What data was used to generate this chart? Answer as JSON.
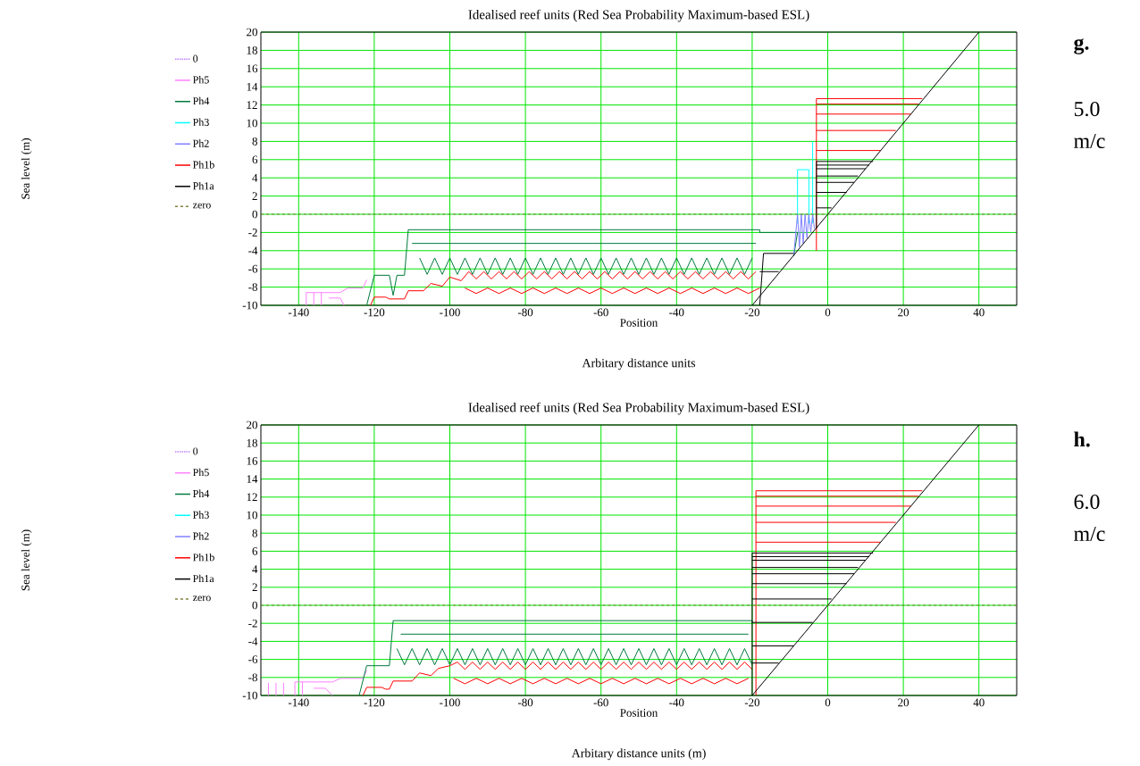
{
  "chart_data": [
    {
      "type": "line",
      "title": "Idealised reef units (Red Sea Probability Maximum-based ESL)",
      "xlabel": "Position",
      "ylabel": "Sea level (m)",
      "annotations": [
        "Arbitary distance units",
        "g.",
        "5.0 m/c"
      ],
      "xlim": [
        -150,
        50
      ],
      "ylim": [
        -10,
        20
      ],
      "xticks": [
        -140,
        -120,
        -100,
        -80,
        -60,
        -40,
        -20,
        0,
        20,
        40
      ],
      "yticks": [
        -10,
        -8,
        -6,
        -4,
        -2,
        0,
        2,
        4,
        6,
        8,
        10,
        12,
        14,
        16,
        18,
        20
      ],
      "grid": true,
      "legend": "left",
      "series": [
        {
          "name": "0",
          "color": "#c080ff",
          "line_style": "dotted"
        },
        {
          "name": "Ph5",
          "color": "#ff80ff",
          "line_style": "solid",
          "x": [
            -138,
            -138,
            -129,
            -127,
            -123,
            -122,
            null,
            -136,
            -136,
            null,
            -134,
            -134,
            null,
            -132,
            -129,
            -128
          ],
          "values": [
            -10,
            -8.6,
            -8.6,
            -8.1,
            -8.1,
            -7.2,
            null,
            -10,
            -8.6,
            null,
            -10,
            -8.6,
            null,
            -9.2,
            -9.2,
            -10
          ]
        },
        {
          "name": "Ph4",
          "color": "#007a3d",
          "line_style": "solid",
          "x": [
            -122,
            -120,
            -116,
            -115,
            -114,
            -112,
            -111,
            -18,
            -18,
            -8,
            -9,
            null,
            -110,
            -19,
            null,
            -108,
            -106,
            -104,
            -102,
            -100,
            -98,
            -96,
            -94,
            -92,
            -90,
            -88,
            -86,
            -84,
            -82,
            -80,
            -78,
            -76,
            -74,
            -72,
            -70,
            -68,
            -66,
            -64,
            -62,
            -60,
            -58,
            -56,
            -54,
            -52,
            -50,
            -48,
            -46,
            -44,
            -42,
            -40,
            -38,
            -36,
            -34,
            -32,
            -30,
            -28,
            -26,
            -24,
            -22,
            -20
          ],
          "values": [
            -10,
            -6.7,
            -6.7,
            -8.9,
            -6.7,
            -6.7,
            -1.7,
            -1.7,
            -2,
            -2,
            -4.6,
            null,
            -3.2,
            -3.2,
            null,
            -4.8,
            -6.6,
            -4.8,
            -6.6,
            -4.8,
            -6.6,
            -4.8,
            -6.6,
            -4.8,
            -6.6,
            -4.8,
            -6.6,
            -4.8,
            -6.6,
            -4.8,
            -6.6,
            -4.8,
            -6.6,
            -4.8,
            -6.6,
            -4.8,
            -6.6,
            -4.8,
            -6.6,
            -4.8,
            -6.6,
            -4.8,
            -6.6,
            -4.8,
            -6.6,
            -4.8,
            -6.6,
            -4.8,
            -6.6,
            -4.8,
            -6.6,
            -4.8,
            -6.6,
            -4.8,
            -6.6,
            -4.8,
            -6.6,
            -4.8,
            -6.6,
            -4.8
          ]
        },
        {
          "name": "Ph3",
          "color": "#00ffff",
          "line_style": "solid",
          "x": [
            -8,
            -8,
            -5,
            -5,
            null,
            -4,
            -4
          ],
          "values": [
            -1,
            4.9,
            4.9,
            -1,
            null,
            -1,
            8
          ]
        },
        {
          "name": "Ph2",
          "color": "#8080ff",
          "line_style": "solid",
          "x": [
            -9,
            -8,
            -7.5,
            -7,
            -6.5,
            -6,
            -5.5,
            -5,
            -4.5,
            -4,
            -3.5
          ],
          "values": [
            -4.5,
            0,
            -3.6,
            0,
            -3.2,
            0,
            -2.6,
            0,
            -2,
            0,
            -1.6
          ]
        },
        {
          "name": "Ph1b",
          "color": "#ff0000",
          "line_style": "solid",
          "x": [
            25,
            -3,
            -3,
            null,
            -3,
            24,
            null,
            -3,
            22,
            null,
            -3,
            18,
            null,
            -3,
            14,
            null,
            -121,
            -120,
            -117,
            -116,
            -112,
            -111,
            -107,
            -105,
            -102,
            -100,
            -97,
            -95,
            -93,
            -91,
            -89,
            -87,
            -85,
            -83,
            -81,
            -79,
            -77,
            -75,
            -73,
            -71,
            -69,
            -67,
            -65,
            -63,
            -61,
            -59,
            -57,
            -55,
            -53,
            -51,
            -49,
            -47,
            -45,
            -43,
            -41,
            -39,
            -37,
            -35,
            -33,
            -31,
            -29,
            -27,
            -25,
            -23,
            -21,
            -19,
            null,
            -96,
            -93,
            -90,
            -87,
            -84,
            -81,
            -78,
            -75,
            -72,
            -69,
            -66,
            -63,
            -60,
            -57,
            -54,
            -51,
            -48,
            -45,
            -42,
            -39,
            -36,
            -33,
            -30,
            -27,
            -24,
            -21,
            -18
          ],
          "values": [
            12.7,
            12.7,
            -4,
            null,
            12.1,
            12.1,
            null,
            11,
            11,
            null,
            9.2,
            9.2,
            null,
            7,
            7,
            null,
            -10,
            -9.1,
            -9.1,
            -9.3,
            -9.3,
            -8.4,
            -8.4,
            -7.6,
            -7.9,
            -6.9,
            -7.3,
            -6.3,
            -7.1,
            -6.3,
            -7.1,
            -6.3,
            -7.1,
            -6.3,
            -7.1,
            -6.3,
            -7.1,
            -6.3,
            -7.1,
            -6.3,
            -7.1,
            -6.3,
            -7.1,
            -6.3,
            -7.1,
            -6.3,
            -7.1,
            -6.3,
            -7.1,
            -6.3,
            -7.1,
            -6.3,
            -7.1,
            -6.3,
            -7.1,
            -6.3,
            -7.1,
            -6.3,
            -7.1,
            -6.3,
            -7.1,
            -6.3,
            -7.1,
            -6.3,
            -7.1,
            -6.3,
            null,
            -8.1,
            -8.7,
            -8.1,
            -8.7,
            -8.1,
            -8.7,
            -8.1,
            -8.7,
            -8.1,
            -8.7,
            -8.1,
            -8.7,
            -8.1,
            -8.7,
            -8.1,
            -8.7,
            -8.1,
            -8.7,
            -8.1,
            -8.7,
            -8.1,
            -8.7,
            -8.1,
            -8.7,
            -8.1,
            -8.7,
            -8.1
          ]
        },
        {
          "name": "Ph1a",
          "color": "#000000",
          "line_style": "solid",
          "x": [
            -20,
            40,
            null,
            -18,
            -17,
            -9,
            null,
            -18,
            -13,
            null,
            -3,
            -3,
            12,
            null,
            -3,
            11,
            null,
            -3,
            10,
            null,
            -3,
            8,
            null,
            -3,
            7,
            null,
            -3,
            5,
            null,
            -3,
            1
          ],
          "values": [
            -10,
            20,
            null,
            -10,
            -4.3,
            -4.3,
            null,
            -6.3,
            -6.3,
            null,
            -1.6,
            5.8,
            5.8,
            null,
            5.4,
            5.4,
            null,
            5,
            5,
            null,
            4.2,
            4.2,
            null,
            3.5,
            3.5,
            null,
            2.4,
            2.4,
            null,
            0.7,
            0.7
          ]
        },
        {
          "name": "zero",
          "color": "#808040",
          "line_style": "dashed",
          "x": [
            -150,
            50
          ],
          "values": [
            0,
            0
          ]
        }
      ]
    },
    {
      "type": "line",
      "title": "Idealised reef units (Red Sea Probability Maximum-based ESL)",
      "xlabel": "Position",
      "ylabel": "Sea level (m)",
      "annotations": [
        "Arbitary distance units (m)",
        "h.",
        "6.0 m/c"
      ],
      "xlim": [
        -150,
        50
      ],
      "ylim": [
        -10,
        20
      ],
      "xticks": [
        -140,
        -120,
        -100,
        -80,
        -60,
        -40,
        -20,
        0,
        20,
        40
      ],
      "yticks": [
        -10,
        -8,
        -6,
        -4,
        -2,
        0,
        2,
        4,
        6,
        8,
        10,
        12,
        14,
        16,
        18,
        20
      ],
      "grid": true,
      "legend": "left",
      "series": [
        {
          "name": "0",
          "color": "#c080ff",
          "line_style": "dotted"
        },
        {
          "name": "Ph5",
          "color": "#ff80ff",
          "line_style": "solid",
          "x": [
            -148,
            -148,
            null,
            -146,
            -146,
            null,
            -144,
            -144,
            null,
            -141,
            -141,
            -131,
            -129,
            -123,
            -122,
            null,
            -139,
            -139,
            null,
            -136,
            -133,
            -131
          ],
          "values": [
            -10,
            -8.6,
            null,
            -10,
            -8.6,
            null,
            -10,
            -8.6,
            null,
            -10,
            -8.5,
            -8.5,
            -8.1,
            -8.1,
            -7.2,
            null,
            -10,
            -8.5,
            null,
            -9.2,
            -9.2,
            -10
          ]
        },
        {
          "name": "Ph4",
          "color": "#007a3d",
          "line_style": "solid",
          "x": [
            -124,
            -122,
            -116,
            -115,
            -20,
            -20,
            null,
            -113,
            -21,
            null,
            -114,
            -112,
            -110,
            -108,
            -106,
            -104,
            -102,
            -100,
            -98,
            -96,
            -94,
            -92,
            -90,
            -88,
            -86,
            -84,
            -82,
            -80,
            -78,
            -76,
            -74,
            -72,
            -70,
            -68,
            -66,
            -64,
            -62,
            -60,
            -58,
            -56,
            -54,
            -52,
            -50,
            -48,
            -46,
            -44,
            -42,
            -40,
            -38,
            -36,
            -34,
            -32,
            -30,
            -28,
            -26,
            -24,
            -22,
            -20
          ],
          "values": [
            -10,
            -6.7,
            -6.7,
            -1.7,
            -1.7,
            -2,
            null,
            -3.2,
            -3.2,
            null,
            -4.8,
            -6.6,
            -4.8,
            -6.6,
            -4.8,
            -6.6,
            -4.8,
            -6.6,
            -4.8,
            -6.6,
            -4.8,
            -6.6,
            -4.8,
            -6.6,
            -4.8,
            -6.6,
            -4.8,
            -6.6,
            -4.8,
            -6.6,
            -4.8,
            -6.6,
            -4.8,
            -6.6,
            -4.8,
            -6.6,
            -4.8,
            -6.6,
            -4.8,
            -6.6,
            -4.8,
            -6.6,
            -4.8,
            -6.6,
            -4.8,
            -6.6,
            -4.8,
            -6.6,
            -4.8,
            -6.6,
            -4.8,
            -6.6,
            -4.8,
            -6.6,
            -4.8,
            -6.6,
            -4.8,
            -6.6
          ]
        },
        {
          "name": "Ph3",
          "color": "#00ffff",
          "line_style": "solid"
        },
        {
          "name": "Ph2",
          "color": "#8080ff",
          "line_style": "solid"
        },
        {
          "name": "Ph1b",
          "color": "#ff0000",
          "line_style": "solid",
          "x": [
            25,
            -19,
            -19,
            null,
            -19,
            24,
            null,
            -19,
            22,
            null,
            -19,
            18,
            null,
            -19,
            14,
            null,
            -123,
            -122,
            -118,
            -117,
            -116,
            -115,
            -110,
            -108,
            -105,
            -103,
            -100,
            -98,
            -96,
            -94,
            -92,
            -90,
            -88,
            -86,
            -84,
            -82,
            -80,
            -78,
            -76,
            -74,
            -72,
            -70,
            -68,
            -66,
            -64,
            -62,
            -60,
            -58,
            -56,
            -54,
            -52,
            -50,
            -48,
            -46,
            -44,
            -42,
            -40,
            -38,
            -36,
            -34,
            -32,
            -30,
            -28,
            -26,
            -24,
            -22,
            -20,
            null,
            -99,
            -96,
            -93,
            -90,
            -87,
            -84,
            -81,
            -78,
            -75,
            -72,
            -69,
            -66,
            -63,
            -60,
            -57,
            -54,
            -51,
            -48,
            -45,
            -42,
            -39,
            -36,
            -33,
            -30,
            -27,
            -24,
            -21
          ],
          "values": [
            12.7,
            12.7,
            -10,
            null,
            12.1,
            12.1,
            null,
            11,
            11,
            null,
            9.2,
            9.2,
            null,
            7,
            7,
            null,
            -10,
            -9.1,
            -9.1,
            -9.3,
            -9.3,
            -8.4,
            -8.4,
            -7.5,
            -7.8,
            -7,
            -6.7,
            -6.3,
            -7.1,
            -6.3,
            -7.1,
            -6.3,
            -7.1,
            -6.3,
            -7.1,
            -6.3,
            -7.1,
            -6.3,
            -7.1,
            -6.3,
            -7.1,
            -6.3,
            -7.1,
            -6.3,
            -7.1,
            -6.3,
            -7.1,
            -6.3,
            -7.1,
            -6.3,
            -7.1,
            -6.3,
            -7.1,
            -6.3,
            -7.1,
            -6.3,
            -7.1,
            -6.3,
            -7.1,
            -6.3,
            -7.1,
            -6.3,
            -7.1,
            -6.3,
            -7.1,
            -6.3,
            -7.1,
            null,
            -8.1,
            -8.7,
            -8.1,
            -8.7,
            -8.1,
            -8.7,
            -8.1,
            -8.7,
            -8.1,
            -8.7,
            -8.1,
            -8.7,
            -8.1,
            -8.7,
            -8.1,
            -8.7,
            -8.1,
            -8.7,
            -8.1,
            -8.7,
            -8.1,
            -8.7,
            -8.1,
            -8.7,
            -8.1,
            -8.7,
            -8.1
          ]
        },
        {
          "name": "Ph1a",
          "color": "#000000",
          "line_style": "solid",
          "x": [
            -20,
            40,
            null,
            -20,
            -20,
            12,
            null,
            -20,
            11,
            null,
            -20,
            10,
            null,
            -20,
            8,
            null,
            -20,
            7,
            null,
            -20,
            5,
            null,
            -20,
            1,
            null,
            -20,
            -4,
            null,
            -20,
            -9,
            null,
            -20,
            -13
          ],
          "values": [
            -10,
            20,
            null,
            -10,
            5.8,
            5.8,
            null,
            5.4,
            5.4,
            null,
            5,
            5,
            null,
            4.2,
            4.2,
            null,
            3.5,
            3.5,
            null,
            2.4,
            2.4,
            null,
            0.7,
            0.7,
            null,
            -1.9,
            -1.9,
            null,
            -4.5,
            -4.5,
            null,
            -6.4,
            -6.4
          ]
        },
        {
          "name": "zero",
          "color": "#808040",
          "line_style": "dashed",
          "x": [
            -150,
            50
          ],
          "values": [
            0,
            0
          ]
        }
      ]
    }
  ]
}
